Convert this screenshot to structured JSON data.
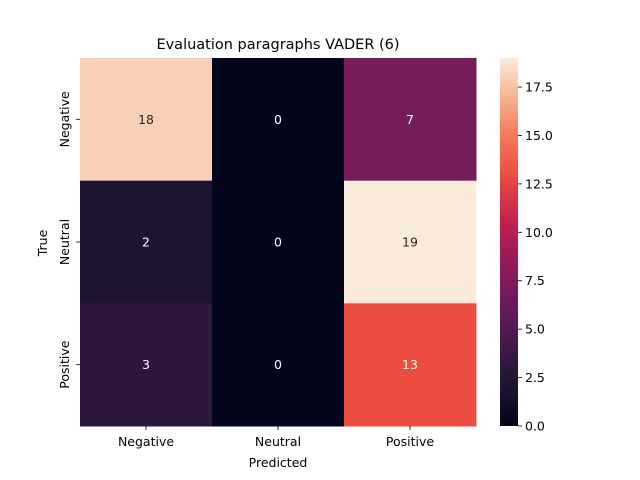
{
  "chart_data": {
    "type": "heatmap",
    "title": "Evaluation paragraphs VADER (6)",
    "xlabel": "Predicted",
    "ylabel": "True",
    "x_categories": [
      "Negative",
      "Neutral",
      "Positive"
    ],
    "y_categories": [
      "Negative",
      "Neutral",
      "Positive"
    ],
    "values": [
      [
        18,
        0,
        7
      ],
      [
        2,
        0,
        19
      ],
      [
        3,
        0,
        13
      ]
    ],
    "colorbar": {
      "min": 0.0,
      "max": 19,
      "ticks": [
        "0.0",
        "2.5",
        "5.0",
        "7.5",
        "10.0",
        "12.5",
        "15.0",
        "17.5"
      ],
      "colormap": "rocket"
    }
  }
}
